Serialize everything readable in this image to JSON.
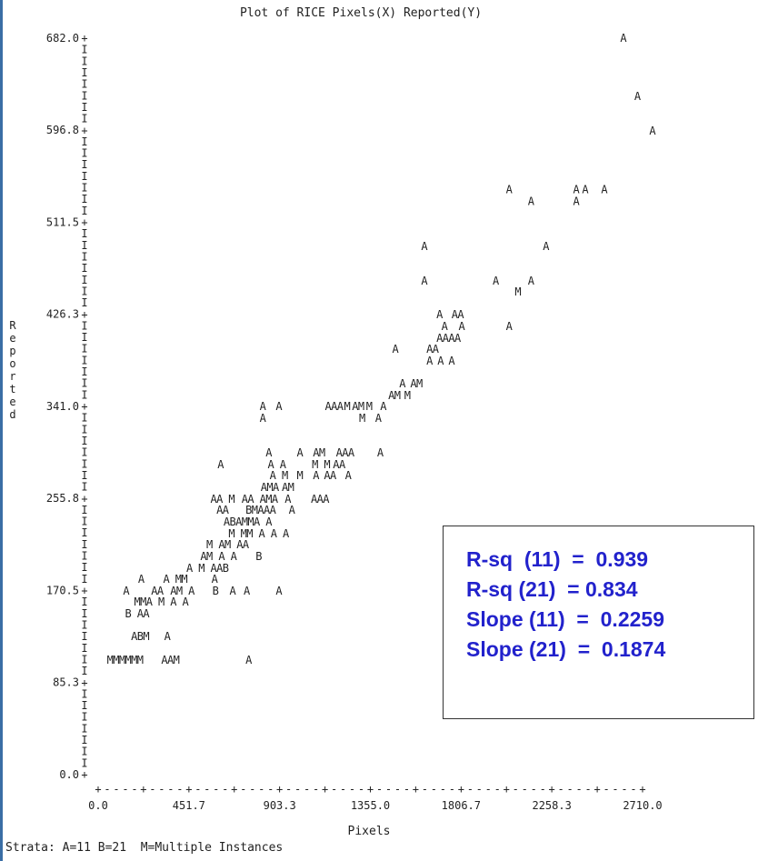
{
  "chart_data": {
    "type": "scatter",
    "title": "Plot of RICE Pixels(X) Reported(Y)",
    "xlabel": "Pixels",
    "ylabel": "Reported",
    "xlim": [
      0,
      2710
    ],
    "ylim": [
      0,
      682
    ],
    "x_ticks": [
      "0.0",
      "451.7",
      "903.3",
      "1355.0",
      "1806.7",
      "2258.3",
      "2710.0"
    ],
    "y_ticks": [
      "0.0",
      "85.3",
      "170.5",
      "255.8",
      "341.0",
      "426.3",
      "511.5",
      "596.8",
      "682.0"
    ],
    "grid": false,
    "symbols": [
      {
        "x": 2615,
        "y": 682,
        "s": "A"
      },
      {
        "x": 2685,
        "y": 628,
        "s": "A"
      },
      {
        "x": 2760,
        "y": 596,
        "s": "A"
      },
      {
        "x": 2046,
        "y": 542,
        "s": "A"
      },
      {
        "x": 2380,
        "y": 542,
        "s": "A"
      },
      {
        "x": 2425,
        "y": 542,
        "s": "A"
      },
      {
        "x": 2520,
        "y": 542,
        "s": "A"
      },
      {
        "x": 2155,
        "y": 531,
        "s": "A"
      },
      {
        "x": 2380,
        "y": 531,
        "s": "A"
      },
      {
        "x": 1624,
        "y": 489,
        "s": "A"
      },
      {
        "x": 2230,
        "y": 489,
        "s": "A"
      },
      {
        "x": 1624,
        "y": 457,
        "s": "A"
      },
      {
        "x": 1980,
        "y": 457,
        "s": "A"
      },
      {
        "x": 2155,
        "y": 457,
        "s": "A"
      },
      {
        "x": 2090,
        "y": 447,
        "s": "M"
      },
      {
        "x": 1700,
        "y": 426,
        "s": "A"
      },
      {
        "x": 1775,
        "y": 426,
        "s": "A"
      },
      {
        "x": 1805,
        "y": 426,
        "s": "A"
      },
      {
        "x": 1725,
        "y": 415,
        "s": "A"
      },
      {
        "x": 1810,
        "y": 415,
        "s": "A"
      },
      {
        "x": 2046,
        "y": 415,
        "s": "A"
      },
      {
        "x": 1700,
        "y": 404,
        "s": "A"
      },
      {
        "x": 1730,
        "y": 404,
        "s": "A"
      },
      {
        "x": 1760,
        "y": 404,
        "s": "A"
      },
      {
        "x": 1790,
        "y": 404,
        "s": "A"
      },
      {
        "x": 1480,
        "y": 394,
        "s": "A"
      },
      {
        "x": 1650,
        "y": 394,
        "s": "A"
      },
      {
        "x": 1680,
        "y": 394,
        "s": "A"
      },
      {
        "x": 1650,
        "y": 383,
        "s": "A"
      },
      {
        "x": 1705,
        "y": 383,
        "s": "A"
      },
      {
        "x": 1760,
        "y": 383,
        "s": "A"
      },
      {
        "x": 1515,
        "y": 362,
        "s": "A"
      },
      {
        "x": 1570,
        "y": 362,
        "s": "A"
      },
      {
        "x": 1600,
        "y": 362,
        "s": "M"
      },
      {
        "x": 1460,
        "y": 351,
        "s": "A"
      },
      {
        "x": 1490,
        "y": 351,
        "s": "M"
      },
      {
        "x": 1540,
        "y": 351,
        "s": "M"
      },
      {
        "x": 820,
        "y": 341,
        "s": "A"
      },
      {
        "x": 900,
        "y": 341,
        "s": "A"
      },
      {
        "x": 1145,
        "y": 341,
        "s": "A"
      },
      {
        "x": 1175,
        "y": 341,
        "s": "A"
      },
      {
        "x": 1205,
        "y": 341,
        "s": "A"
      },
      {
        "x": 1240,
        "y": 341,
        "s": "M"
      },
      {
        "x": 1280,
        "y": 341,
        "s": "A"
      },
      {
        "x": 1310,
        "y": 341,
        "s": "M"
      },
      {
        "x": 1350,
        "y": 341,
        "s": "M"
      },
      {
        "x": 1420,
        "y": 341,
        "s": "A"
      },
      {
        "x": 820,
        "y": 330,
        "s": "A"
      },
      {
        "x": 1315,
        "y": 330,
        "s": "M"
      },
      {
        "x": 1395,
        "y": 330,
        "s": "A"
      },
      {
        "x": 850,
        "y": 298,
        "s": "A"
      },
      {
        "x": 1005,
        "y": 298,
        "s": "A"
      },
      {
        "x": 1085,
        "y": 298,
        "s": "A"
      },
      {
        "x": 1115,
        "y": 298,
        "s": "M"
      },
      {
        "x": 1200,
        "y": 298,
        "s": "A"
      },
      {
        "x": 1230,
        "y": 298,
        "s": "A"
      },
      {
        "x": 1260,
        "y": 298,
        "s": "A"
      },
      {
        "x": 1405,
        "y": 298,
        "s": "A"
      },
      {
        "x": 610,
        "y": 287,
        "s": "A"
      },
      {
        "x": 860,
        "y": 287,
        "s": "A"
      },
      {
        "x": 920,
        "y": 287,
        "s": "A"
      },
      {
        "x": 1080,
        "y": 287,
        "s": "M"
      },
      {
        "x": 1140,
        "y": 287,
        "s": "M"
      },
      {
        "x": 1185,
        "y": 287,
        "s": "A"
      },
      {
        "x": 1215,
        "y": 287,
        "s": "A"
      },
      {
        "x": 870,
        "y": 277,
        "s": "A"
      },
      {
        "x": 930,
        "y": 277,
        "s": "M"
      },
      {
        "x": 1005,
        "y": 277,
        "s": "M"
      },
      {
        "x": 1085,
        "y": 277,
        "s": "A"
      },
      {
        "x": 1140,
        "y": 277,
        "s": "A"
      },
      {
        "x": 1170,
        "y": 277,
        "s": "A"
      },
      {
        "x": 1245,
        "y": 277,
        "s": "A"
      },
      {
        "x": 825,
        "y": 266,
        "s": "A"
      },
      {
        "x": 855,
        "y": 266,
        "s": "M"
      },
      {
        "x": 885,
        "y": 266,
        "s": "A"
      },
      {
        "x": 930,
        "y": 266,
        "s": "A"
      },
      {
        "x": 960,
        "y": 266,
        "s": "M"
      },
      {
        "x": 575,
        "y": 255,
        "s": "A"
      },
      {
        "x": 605,
        "y": 255,
        "s": "A"
      },
      {
        "x": 665,
        "y": 255,
        "s": "M"
      },
      {
        "x": 730,
        "y": 255,
        "s": "A"
      },
      {
        "x": 760,
        "y": 255,
        "s": "A"
      },
      {
        "x": 820,
        "y": 255,
        "s": "A"
      },
      {
        "x": 850,
        "y": 255,
        "s": "M"
      },
      {
        "x": 880,
        "y": 255,
        "s": "A"
      },
      {
        "x": 945,
        "y": 255,
        "s": "A"
      },
      {
        "x": 1075,
        "y": 255,
        "s": "A"
      },
      {
        "x": 1105,
        "y": 255,
        "s": "A"
      },
      {
        "x": 1135,
        "y": 255,
        "s": "A"
      },
      {
        "x": 605,
        "y": 245,
        "s": "A"
      },
      {
        "x": 635,
        "y": 245,
        "s": "A"
      },
      {
        "x": 750,
        "y": 245,
        "s": "B"
      },
      {
        "x": 780,
        "y": 245,
        "s": "M"
      },
      {
        "x": 810,
        "y": 245,
        "s": "A"
      },
      {
        "x": 840,
        "y": 245,
        "s": "A"
      },
      {
        "x": 870,
        "y": 245,
        "s": "A"
      },
      {
        "x": 965,
        "y": 245,
        "s": "A"
      },
      {
        "x": 640,
        "y": 234,
        "s": "A"
      },
      {
        "x": 670,
        "y": 234,
        "s": "B"
      },
      {
        "x": 700,
        "y": 234,
        "s": "A"
      },
      {
        "x": 730,
        "y": 234,
        "s": "M"
      },
      {
        "x": 760,
        "y": 234,
        "s": "M"
      },
      {
        "x": 790,
        "y": 234,
        "s": "A"
      },
      {
        "x": 850,
        "y": 234,
        "s": "A"
      },
      {
        "x": 665,
        "y": 223,
        "s": "M"
      },
      {
        "x": 725,
        "y": 223,
        "s": "M"
      },
      {
        "x": 755,
        "y": 223,
        "s": "M"
      },
      {
        "x": 815,
        "y": 223,
        "s": "A"
      },
      {
        "x": 875,
        "y": 223,
        "s": "A"
      },
      {
        "x": 935,
        "y": 223,
        "s": "A"
      },
      {
        "x": 555,
        "y": 213,
        "s": "M"
      },
      {
        "x": 615,
        "y": 213,
        "s": "A"
      },
      {
        "x": 645,
        "y": 213,
        "s": "M"
      },
      {
        "x": 705,
        "y": 213,
        "s": "A"
      },
      {
        "x": 735,
        "y": 213,
        "s": "A"
      },
      {
        "x": 525,
        "y": 202,
        "s": "A"
      },
      {
        "x": 555,
        "y": 202,
        "s": "M"
      },
      {
        "x": 615,
        "y": 202,
        "s": "A"
      },
      {
        "x": 675,
        "y": 202,
        "s": "A"
      },
      {
        "x": 800,
        "y": 202,
        "s": "B"
      },
      {
        "x": 455,
        "y": 191,
        "s": "A"
      },
      {
        "x": 515,
        "y": 191,
        "s": "M"
      },
      {
        "x": 575,
        "y": 191,
        "s": "A"
      },
      {
        "x": 605,
        "y": 191,
        "s": "A"
      },
      {
        "x": 635,
        "y": 191,
        "s": "B"
      },
      {
        "x": 215,
        "y": 181,
        "s": "A"
      },
      {
        "x": 340,
        "y": 181,
        "s": "A"
      },
      {
        "x": 400,
        "y": 181,
        "s": "M"
      },
      {
        "x": 430,
        "y": 181,
        "s": "M"
      },
      {
        "x": 580,
        "y": 181,
        "s": "A"
      },
      {
        "x": 140,
        "y": 170,
        "s": "A"
      },
      {
        "x": 280,
        "y": 170,
        "s": "A"
      },
      {
        "x": 310,
        "y": 170,
        "s": "A"
      },
      {
        "x": 375,
        "y": 170,
        "s": "A"
      },
      {
        "x": 405,
        "y": 170,
        "s": "M"
      },
      {
        "x": 465,
        "y": 170,
        "s": "A"
      },
      {
        "x": 585,
        "y": 170,
        "s": "B"
      },
      {
        "x": 670,
        "y": 170,
        "s": "A"
      },
      {
        "x": 740,
        "y": 170,
        "s": "A"
      },
      {
        "x": 900,
        "y": 170,
        "s": "A"
      },
      {
        "x": 195,
        "y": 160,
        "s": "M"
      },
      {
        "x": 225,
        "y": 160,
        "s": "M"
      },
      {
        "x": 255,
        "y": 160,
        "s": "A"
      },
      {
        "x": 315,
        "y": 160,
        "s": "M"
      },
      {
        "x": 375,
        "y": 160,
        "s": "A"
      },
      {
        "x": 435,
        "y": 160,
        "s": "A"
      },
      {
        "x": 150,
        "y": 149,
        "s": "B"
      },
      {
        "x": 210,
        "y": 149,
        "s": "A"
      },
      {
        "x": 240,
        "y": 149,
        "s": "A"
      },
      {
        "x": 180,
        "y": 128,
        "s": "A"
      },
      {
        "x": 210,
        "y": 128,
        "s": "B"
      },
      {
        "x": 240,
        "y": 128,
        "s": "M"
      },
      {
        "x": 345,
        "y": 128,
        "s": "A"
      },
      {
        "x": 60,
        "y": 106,
        "s": "M"
      },
      {
        "x": 90,
        "y": 106,
        "s": "M"
      },
      {
        "x": 120,
        "y": 106,
        "s": "M"
      },
      {
        "x": 150,
        "y": 106,
        "s": "M"
      },
      {
        "x": 180,
        "y": 106,
        "s": "M"
      },
      {
        "x": 210,
        "y": 106,
        "s": "M"
      },
      {
        "x": 330,
        "y": 106,
        "s": "A"
      },
      {
        "x": 360,
        "y": 106,
        "s": "A"
      },
      {
        "x": 390,
        "y": 106,
        "s": "M"
      },
      {
        "x": 750,
        "y": 106,
        "s": "A"
      }
    ]
  },
  "stats": {
    "lines": [
      "R-sq  (11)  =  0.939",
      "R-sq (21)  = 0.834",
      "Slope (11)  =  0.2259",
      "Slope (21)  =  0.1874"
    ],
    "color": "#2222cc"
  },
  "footer": {
    "strata": "Strata: A=11 B=21  M=Multiple Instances"
  },
  "colors": {
    "text": "#222222",
    "left_rule": "#3a6ea5"
  }
}
